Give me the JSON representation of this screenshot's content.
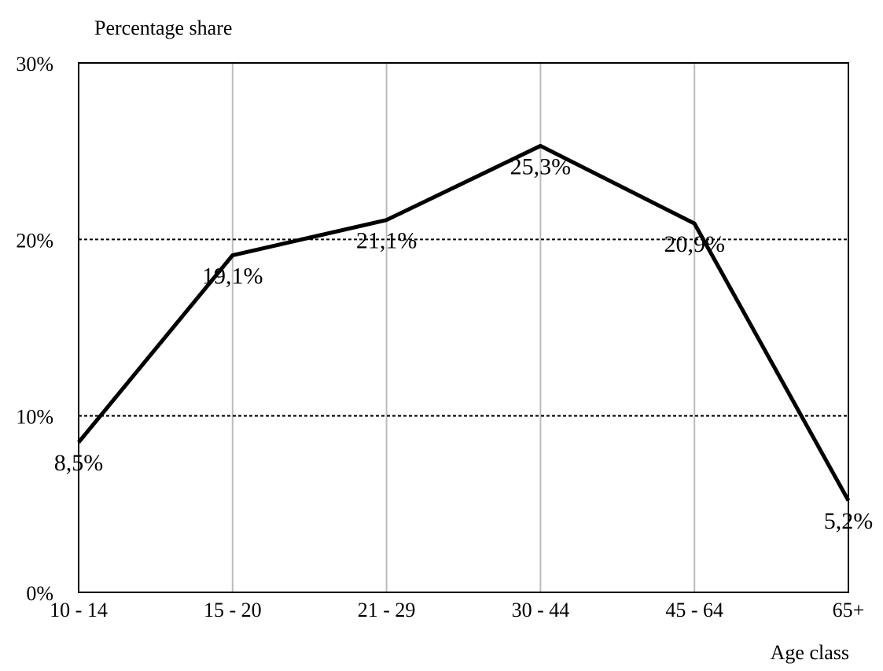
{
  "chart_data": {
    "type": "line",
    "y_label": "Percentage share",
    "x_label": "Age class",
    "categories": [
      "10 - 14",
      "15 - 20",
      "21 - 29",
      "30 - 44",
      "45 - 64",
      "65+"
    ],
    "values": [
      8.5,
      19.1,
      21.1,
      25.3,
      20.9,
      5.2
    ],
    "value_labels": [
      "8,5%",
      "19,1%",
      "21,1%",
      "25,3%",
      "20,9%",
      "5,2%"
    ],
    "color": "#000000",
    "ylim": [
      0,
      30
    ],
    "yticks": [
      {
        "value": 0,
        "label": "0%"
      },
      {
        "value": 10,
        "label": "10%"
      },
      {
        "value": 20,
        "label": "20%"
      },
      {
        "value": 30,
        "label": "30%"
      }
    ],
    "grid": true
  }
}
